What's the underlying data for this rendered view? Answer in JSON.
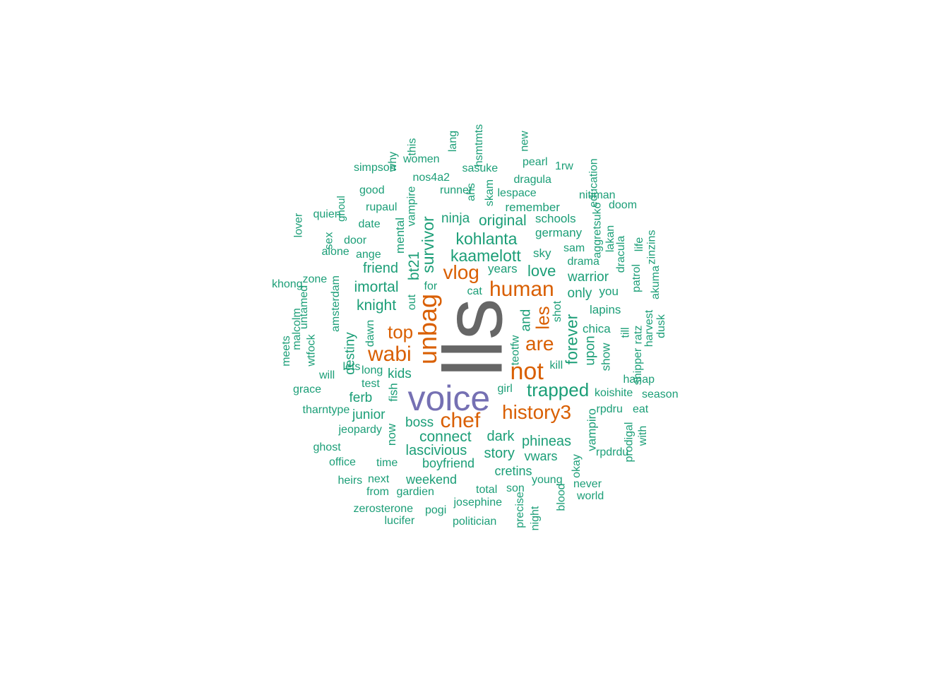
{
  "palette": {
    "teal": "#1b9e77",
    "orange": "#d95f02",
    "purple": "#7570b3",
    "gray": "#666666"
  },
  "words": [
    {
      "text": "lls",
      "color": "gray",
      "rotated": true
    },
    {
      "text": "voice",
      "color": "purple",
      "rotated": false
    },
    {
      "text": "unbag",
      "color": "orange",
      "rotated": true
    },
    {
      "text": "human",
      "color": "orange",
      "rotated": false
    },
    {
      "text": "not",
      "color": "orange",
      "rotated": false
    },
    {
      "text": "history3",
      "color": "orange",
      "rotated": false
    },
    {
      "text": "chef",
      "color": "orange",
      "rotated": false
    },
    {
      "text": "wabi",
      "color": "orange",
      "rotated": false
    },
    {
      "text": "vlog",
      "color": "orange",
      "rotated": false
    },
    {
      "text": "top",
      "color": "orange",
      "rotated": false
    },
    {
      "text": "are",
      "color": "orange",
      "rotated": false
    },
    {
      "text": "les",
      "color": "orange",
      "rotated": true
    },
    {
      "text": "trapped",
      "color": "teal",
      "rotated": false
    },
    {
      "text": "kaamelott",
      "color": "teal",
      "rotated": false
    },
    {
      "text": "kohlanta",
      "color": "teal",
      "rotated": false
    },
    {
      "text": "survivor",
      "color": "teal",
      "rotated": true
    },
    {
      "text": "forever",
      "color": "teal",
      "rotated": true
    },
    {
      "text": "original",
      "color": "teal",
      "rotated": false
    },
    {
      "text": "love",
      "color": "teal",
      "rotated": false
    },
    {
      "text": "imortal",
      "color": "teal",
      "rotated": false
    },
    {
      "text": "knight",
      "color": "teal",
      "rotated": false
    },
    {
      "text": "friend",
      "color": "teal",
      "rotated": false
    },
    {
      "text": "ninja",
      "color": "teal",
      "rotated": false
    },
    {
      "text": "bt21",
      "color": "teal",
      "rotated": true
    },
    {
      "text": "connect",
      "color": "teal",
      "rotated": false
    },
    {
      "text": "lascivious",
      "color": "teal",
      "rotated": false
    },
    {
      "text": "phineas",
      "color": "teal",
      "rotated": false
    },
    {
      "text": "dark",
      "color": "teal",
      "rotated": false
    },
    {
      "text": "story",
      "color": "teal",
      "rotated": false
    },
    {
      "text": "boss",
      "color": "teal",
      "rotated": false
    },
    {
      "text": "junior",
      "color": "teal",
      "rotated": false
    },
    {
      "text": "kids",
      "color": "teal",
      "rotated": false
    },
    {
      "text": "ferb",
      "color": "teal",
      "rotated": false
    },
    {
      "text": "destiny",
      "color": "teal",
      "rotated": true
    },
    {
      "text": "and",
      "color": "teal",
      "rotated": true
    },
    {
      "text": "warrior",
      "color": "teal",
      "rotated": false
    },
    {
      "text": "only",
      "color": "teal",
      "rotated": false
    },
    {
      "text": "upon",
      "color": "teal",
      "rotated": true
    },
    {
      "text": "vwars",
      "color": "teal",
      "rotated": false
    },
    {
      "text": "boyfriend",
      "color": "teal",
      "rotated": false
    },
    {
      "text": "cretins",
      "color": "teal",
      "rotated": false
    },
    {
      "text": "weekend",
      "color": "teal",
      "rotated": false
    },
    {
      "text": "germany",
      "color": "teal",
      "rotated": false
    },
    {
      "text": "schools",
      "color": "teal",
      "rotated": false
    },
    {
      "text": "remember",
      "color": "teal",
      "rotated": false
    },
    {
      "text": "sky",
      "color": "teal",
      "rotated": false
    },
    {
      "text": "years",
      "color": "teal",
      "rotated": false
    },
    {
      "text": "chica",
      "color": "teal",
      "rotated": false
    },
    {
      "text": "lapins",
      "color": "teal",
      "rotated": false
    },
    {
      "text": "you",
      "color": "teal",
      "rotated": false
    },
    {
      "text": "show",
      "color": "teal",
      "rotated": true
    },
    {
      "text": "vampiro",
      "color": "teal",
      "rotated": true
    },
    {
      "text": "fish",
      "color": "teal",
      "rotated": true
    },
    {
      "text": "mental",
      "color": "teal",
      "rotated": true
    },
    {
      "text": "now",
      "color": "teal",
      "rotated": true
    },
    {
      "text": "amsterdam",
      "color": "teal",
      "rotated": true
    },
    {
      "text": "vampire",
      "color": "teal",
      "rotated": true
    },
    {
      "text": "skam",
      "color": "teal",
      "rotated": true
    },
    {
      "text": "cat",
      "color": "teal",
      "rotated": false
    },
    {
      "text": "for",
      "color": "teal",
      "rotated": false
    },
    {
      "text": "out",
      "color": "teal",
      "rotated": true
    },
    {
      "text": "drama",
      "color": "teal",
      "rotated": false
    },
    {
      "text": "sam",
      "color": "teal",
      "rotated": false
    },
    {
      "text": "girl",
      "color": "teal",
      "rotated": false
    },
    {
      "text": "total",
      "color": "teal",
      "rotated": false
    },
    {
      "text": "son",
      "color": "teal",
      "rotated": false
    },
    {
      "text": "josephine",
      "color": "teal",
      "rotated": false
    },
    {
      "text": "politician",
      "color": "teal",
      "rotated": false
    },
    {
      "text": "pogi",
      "color": "teal",
      "rotated": false
    },
    {
      "text": "gardien",
      "color": "teal",
      "rotated": false
    },
    {
      "text": "from",
      "color": "teal",
      "rotated": false
    },
    {
      "text": "zerosterone",
      "color": "teal",
      "rotated": false
    },
    {
      "text": "lucifer",
      "color": "teal",
      "rotated": false
    },
    {
      "text": "next",
      "color": "teal",
      "rotated": false
    },
    {
      "text": "heirs",
      "color": "teal",
      "rotated": false
    },
    {
      "text": "time",
      "color": "teal",
      "rotated": false
    },
    {
      "text": "office",
      "color": "teal",
      "rotated": false
    },
    {
      "text": "ghost",
      "color": "teal",
      "rotated": false
    },
    {
      "text": "jeopardy",
      "color": "teal",
      "rotated": false
    },
    {
      "text": "tharntype",
      "color": "teal",
      "rotated": false
    },
    {
      "text": "grace",
      "color": "teal",
      "rotated": false
    },
    {
      "text": "will",
      "color": "teal",
      "rotated": false
    },
    {
      "text": "wtfock",
      "color": "teal",
      "rotated": true
    },
    {
      "text": "malcolm",
      "color": "teal",
      "rotated": true
    },
    {
      "text": "meets",
      "color": "teal",
      "rotated": true
    },
    {
      "text": "untamed",
      "color": "teal",
      "rotated": true
    },
    {
      "text": "khong",
      "color": "teal",
      "rotated": false
    },
    {
      "text": "zone",
      "color": "teal",
      "rotated": false
    },
    {
      "text": "lover",
      "color": "teal",
      "rotated": true
    },
    {
      "text": "quien",
      "color": "teal",
      "rotated": false
    },
    {
      "text": "ghoul",
      "color": "teal",
      "rotated": true
    },
    {
      "text": "sex",
      "color": "teal",
      "rotated": true
    },
    {
      "text": "door",
      "color": "teal",
      "rotated": false
    },
    {
      "text": "alone",
      "color": "teal",
      "rotated": false
    },
    {
      "text": "ange",
      "color": "teal",
      "rotated": false
    },
    {
      "text": "date",
      "color": "teal",
      "rotated": false
    },
    {
      "text": "rupaul",
      "color": "teal",
      "rotated": false
    },
    {
      "text": "good",
      "color": "teal",
      "rotated": false
    },
    {
      "text": "simpson",
      "color": "teal",
      "rotated": false
    },
    {
      "text": "why",
      "color": "teal",
      "rotated": true
    },
    {
      "text": "this",
      "color": "teal",
      "rotated": true
    },
    {
      "text": "women",
      "color": "teal",
      "rotated": false
    },
    {
      "text": "nos4a2",
      "color": "teal",
      "rotated": false
    },
    {
      "text": "lang",
      "color": "teal",
      "rotated": true
    },
    {
      "text": "hsmtmts",
      "color": "teal",
      "rotated": true
    },
    {
      "text": "sasuke",
      "color": "teal",
      "rotated": false
    },
    {
      "text": "runner",
      "color": "teal",
      "rotated": false
    },
    {
      "text": "ahs",
      "color": "teal",
      "rotated": true
    },
    {
      "text": "new",
      "color": "teal",
      "rotated": true
    },
    {
      "text": "pearl",
      "color": "teal",
      "rotated": false
    },
    {
      "text": "dragula",
      "color": "teal",
      "rotated": false
    },
    {
      "text": "lespace",
      "color": "teal",
      "rotated": false
    },
    {
      "text": "1rw",
      "color": "teal",
      "rotated": false
    },
    {
      "text": "education",
      "color": "teal",
      "rotated": true
    },
    {
      "text": "nitiman",
      "color": "teal",
      "rotated": false
    },
    {
      "text": "doom",
      "color": "teal",
      "rotated": false
    },
    {
      "text": "aggretsuko",
      "color": "teal",
      "rotated": true
    },
    {
      "text": "lakan",
      "color": "teal",
      "rotated": true
    },
    {
      "text": "life",
      "color": "teal",
      "rotated": true
    },
    {
      "text": "zinzins",
      "color": "teal",
      "rotated": true
    },
    {
      "text": "dracula",
      "color": "teal",
      "rotated": true
    },
    {
      "text": "patrol",
      "color": "teal",
      "rotated": true
    },
    {
      "text": "akuma",
      "color": "teal",
      "rotated": true
    },
    {
      "text": "shot",
      "color": "teal",
      "rotated": true
    },
    {
      "text": "teotfw",
      "color": "teal",
      "rotated": true
    },
    {
      "text": "kill",
      "color": "teal",
      "rotated": false
    },
    {
      "text": "till",
      "color": "teal",
      "rotated": true
    },
    {
      "text": "ratz",
      "color": "teal",
      "rotated": true
    },
    {
      "text": "harvest",
      "color": "teal",
      "rotated": true
    },
    {
      "text": "dusk",
      "color": "teal",
      "rotated": true
    },
    {
      "text": "shipper",
      "color": "teal",
      "rotated": true
    },
    {
      "text": "hanap",
      "color": "teal",
      "rotated": false
    },
    {
      "text": "season",
      "color": "teal",
      "rotated": false
    },
    {
      "text": "koishite",
      "color": "teal",
      "rotated": false
    },
    {
      "text": "rpdru",
      "color": "teal",
      "rotated": false
    },
    {
      "text": "eat",
      "color": "teal",
      "rotated": false
    },
    {
      "text": "rpdrdu",
      "color": "teal",
      "rotated": false
    },
    {
      "text": "prodigal",
      "color": "teal",
      "rotated": true
    },
    {
      "text": "with",
      "color": "teal",
      "rotated": true
    },
    {
      "text": "okay",
      "color": "teal",
      "rotated": true
    },
    {
      "text": "never",
      "color": "teal",
      "rotated": false
    },
    {
      "text": "world",
      "color": "teal",
      "rotated": false
    },
    {
      "text": "young",
      "color": "teal",
      "rotated": false
    },
    {
      "text": "blood",
      "color": "teal",
      "rotated": true
    },
    {
      "text": "precise",
      "color": "teal",
      "rotated": true
    },
    {
      "text": "night",
      "color": "teal",
      "rotated": true
    },
    {
      "text": "dawn",
      "color": "teal",
      "rotated": true
    },
    {
      "text": "long",
      "color": "teal",
      "rotated": false
    },
    {
      "text": "test",
      "color": "teal",
      "rotated": false
    },
    {
      "text": "lets",
      "color": "teal",
      "rotated": false
    },
    {
      "text": "y",
      "color": "teal",
      "rotated": false
    }
  ]
}
